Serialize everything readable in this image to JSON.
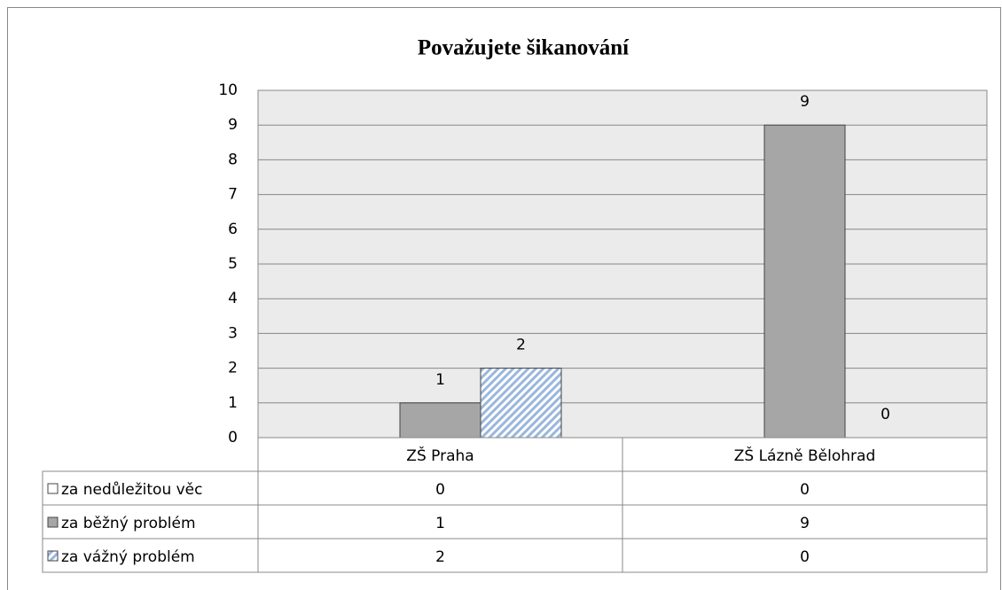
{
  "chart_data": {
    "type": "bar",
    "title": "Považujete šikanování",
    "categories": [
      "ZŠ Praha",
      "ZŠ Lázně Bělohrad"
    ],
    "series": [
      {
        "name": "za nedůležitou věc",
        "color": "#ffffff",
        "values": [
          0,
          0
        ]
      },
      {
        "name": "za běžný problém",
        "color": "#a6a6a6",
        "values": [
          1,
          9
        ],
        "data_labels": true
      },
      {
        "name": "za vážný problém",
        "color": "#9ab7dd",
        "pattern": "diagonal",
        "values": [
          2,
          0
        ],
        "data_labels": true
      }
    ],
    "ylim": [
      0,
      10
    ],
    "yticks": [
      0,
      1,
      2,
      3,
      4,
      5,
      6,
      7,
      8,
      9,
      10
    ],
    "grid": true,
    "data_table": true
  }
}
